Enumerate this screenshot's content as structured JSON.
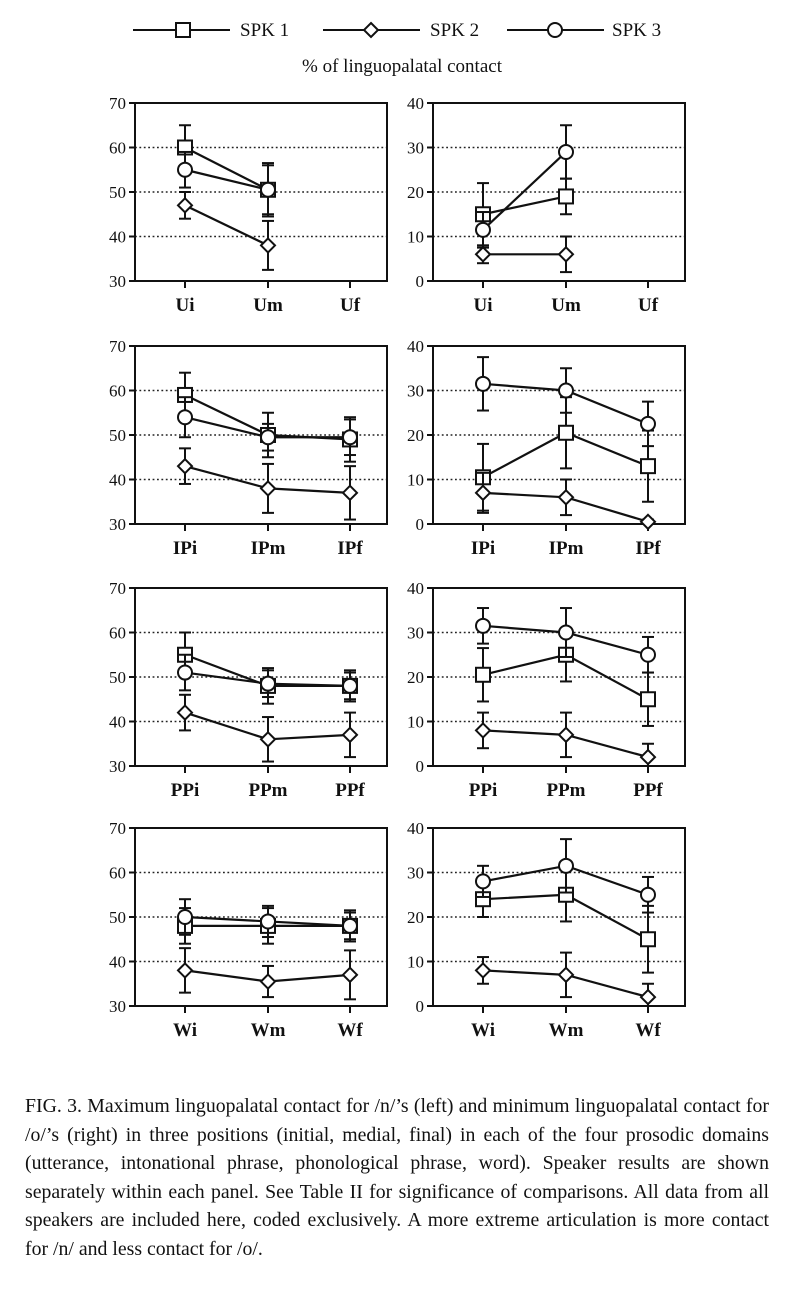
{
  "legend": [
    {
      "label": "SPK 1",
      "marker": "square"
    },
    {
      "label": "SPK 2",
      "marker": "diamond"
    },
    {
      "label": "SPK 3",
      "marker": "circle"
    }
  ],
  "subtitle": "% of linguopalatal contact",
  "caption": "FIG. 3. Maximum linguopalatal contact for /n/’s (left) and minimum linguopalatal contact for /o/’s (right) in three positions (initial, medial, final) in each of the four prosodic domains (utterance, intonational phrase, phonological phrase, word). Speaker results are shown separately within each panel. See Table II for significance of comparisons. All data from all speakers are included here, coded exclusively. A more extreme articulation is more contact for /n/ and less contact for /o/.",
  "chart_data": [
    {
      "type": "line",
      "row": 0,
      "col": 0,
      "categories": [
        "Ui",
        "Um",
        "Uf"
      ],
      "ylim": [
        30,
        70
      ],
      "yticks": [
        30,
        40,
        50,
        60,
        70
      ],
      "grid": "horizontal-dotted",
      "series": [
        {
          "name": "SPK 1",
          "marker": "square",
          "values": [
            60,
            50.5,
            null
          ],
          "err": [
            5,
            5.5,
            null
          ]
        },
        {
          "name": "SPK 2",
          "marker": "diamond",
          "values": [
            47,
            38,
            null
          ],
          "err": [
            3,
            5.5,
            null
          ]
        },
        {
          "name": "SPK 3",
          "marker": "circle",
          "values": [
            55,
            50.5,
            null
          ],
          "err": [
            4,
            6,
            null
          ]
        }
      ]
    },
    {
      "type": "line",
      "row": 0,
      "col": 1,
      "categories": [
        "Ui",
        "Um",
        "Uf"
      ],
      "ylim": [
        0,
        40
      ],
      "yticks": [
        0,
        10,
        20,
        30,
        40
      ],
      "grid": "horizontal-dotted",
      "series": [
        {
          "name": "SPK 1",
          "marker": "square",
          "values": [
            15,
            19,
            null
          ],
          "err": [
            7,
            4,
            null
          ]
        },
        {
          "name": "SPK 2",
          "marker": "diamond",
          "values": [
            6,
            6,
            null
          ],
          "err": [
            2,
            4,
            null
          ]
        },
        {
          "name": "SPK 3",
          "marker": "circle",
          "values": [
            11.5,
            29,
            null
          ],
          "err": [
            4,
            6,
            null
          ]
        }
      ]
    },
    {
      "type": "line",
      "row": 1,
      "col": 0,
      "categories": [
        "IPi",
        "IPm",
        "IPf"
      ],
      "ylim": [
        30,
        70
      ],
      "yticks": [
        30,
        40,
        50,
        60,
        70
      ],
      "grid": "horizontal-dotted",
      "series": [
        {
          "name": "SPK 1",
          "marker": "square",
          "values": [
            59,
            50,
            49
          ],
          "err": [
            5,
            5,
            5
          ]
        },
        {
          "name": "SPK 2",
          "marker": "diamond",
          "values": [
            43,
            38,
            37
          ],
          "err": [
            4,
            5.5,
            6
          ]
        },
        {
          "name": "SPK 3",
          "marker": "circle",
          "values": [
            54,
            49.5,
            49.5
          ],
          "err": [
            4.5,
            3,
            4
          ]
        }
      ]
    },
    {
      "type": "line",
      "row": 1,
      "col": 1,
      "categories": [
        "IPi",
        "IPm",
        "IPf"
      ],
      "ylim": [
        0,
        40
      ],
      "yticks": [
        0,
        10,
        20,
        30,
        40
      ],
      "grid": "horizontal-dotted",
      "series": [
        {
          "name": "SPK 1",
          "marker": "square",
          "values": [
            10.5,
            20.5,
            13
          ],
          "err": [
            7.5,
            8,
            8
          ]
        },
        {
          "name": "SPK 2",
          "marker": "diamond",
          "values": [
            7,
            6,
            0.5
          ],
          "err": [
            4.5,
            4,
            0.5
          ]
        },
        {
          "name": "SPK 3",
          "marker": "circle",
          "values": [
            31.5,
            30,
            22.5
          ],
          "err": [
            6,
            5,
            5
          ]
        }
      ]
    },
    {
      "type": "line",
      "row": 2,
      "col": 0,
      "categories": [
        "PPi",
        "PPm",
        "PPf"
      ],
      "ylim": [
        30,
        70
      ],
      "yticks": [
        30,
        40,
        50,
        60,
        70
      ],
      "grid": "horizontal-dotted",
      "series": [
        {
          "name": "SPK 1",
          "marker": "square",
          "values": [
            55,
            48,
            48
          ],
          "err": [
            5,
            4,
            3.5
          ]
        },
        {
          "name": "SPK 2",
          "marker": "diamond",
          "values": [
            42,
            36,
            37
          ],
          "err": [
            4,
            5,
            5
          ]
        },
        {
          "name": "SPK 3",
          "marker": "circle",
          "values": [
            51,
            48.5,
            48
          ],
          "err": [
            4,
            3,
            3
          ]
        }
      ]
    },
    {
      "type": "line",
      "row": 2,
      "col": 1,
      "categories": [
        "PPi",
        "PPm",
        "PPf"
      ],
      "ylim": [
        0,
        40
      ],
      "yticks": [
        0,
        10,
        20,
        30,
        40
      ],
      "grid": "horizontal-dotted",
      "series": [
        {
          "name": "SPK 1",
          "marker": "square",
          "values": [
            20.5,
            25,
            15
          ],
          "err": [
            6,
            6,
            6
          ]
        },
        {
          "name": "SPK 2",
          "marker": "diamond",
          "values": [
            8,
            7,
            2
          ],
          "err": [
            4,
            5,
            3
          ]
        },
        {
          "name": "SPK 3",
          "marker": "circle",
          "values": [
            31.5,
            30,
            25
          ],
          "err": [
            4,
            5.5,
            4
          ]
        }
      ]
    },
    {
      "type": "line",
      "row": 3,
      "col": 0,
      "categories": [
        "Wi",
        "Wm",
        "Wf"
      ],
      "ylim": [
        30,
        70
      ],
      "yticks": [
        30,
        40,
        50,
        60,
        70
      ],
      "grid": "horizontal-dotted",
      "series": [
        {
          "name": "SPK 1",
          "marker": "square",
          "values": [
            48,
            48,
            48
          ],
          "err": [
            4,
            4,
            3
          ]
        },
        {
          "name": "SPK 2",
          "marker": "diamond",
          "values": [
            38,
            35.5,
            37
          ],
          "err": [
            5,
            3.5,
            5.5
          ]
        },
        {
          "name": "SPK 3",
          "marker": "circle",
          "values": [
            50,
            49,
            48
          ],
          "err": [
            4,
            3.5,
            3.5
          ]
        }
      ]
    },
    {
      "type": "line",
      "row": 3,
      "col": 1,
      "categories": [
        "Wi",
        "Wm",
        "Wf"
      ],
      "ylim": [
        0,
        40
      ],
      "yticks": [
        0,
        10,
        20,
        30,
        40
      ],
      "grid": "horizontal-dotted",
      "series": [
        {
          "name": "SPK 1",
          "marker": "square",
          "values": [
            24,
            25,
            15
          ],
          "err": [
            4,
            6,
            7.5
          ]
        },
        {
          "name": "SPK 2",
          "marker": "diamond",
          "values": [
            8,
            7,
            2
          ],
          "err": [
            3,
            5,
            3
          ]
        },
        {
          "name": "SPK 3",
          "marker": "circle",
          "values": [
            28,
            31.5,
            25
          ],
          "err": [
            3.5,
            6,
            4
          ]
        }
      ]
    }
  ]
}
